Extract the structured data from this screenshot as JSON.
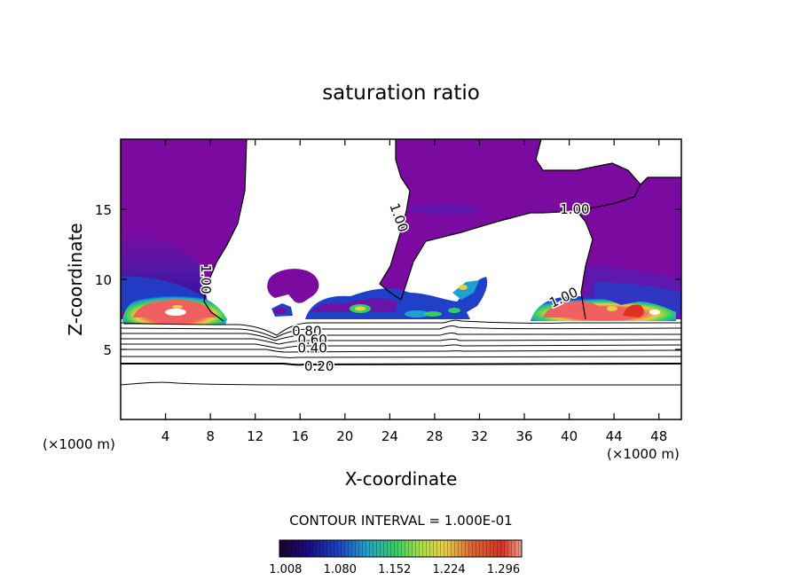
{
  "chart_data": {
    "type": "heatmap",
    "title": "saturation ratio",
    "xlabel": "X-coordinate",
    "ylabel": "Z-coordinate",
    "x_unit_left": "(×1000 m)",
    "x_unit_right": "(×1000 m)",
    "xlim": [
      0,
      50
    ],
    "ylim": [
      0,
      20
    ],
    "x_ticks": [
      4,
      8,
      12,
      16,
      20,
      24,
      28,
      32,
      36,
      40,
      44,
      48
    ],
    "y_ticks": [
      5,
      10,
      15
    ],
    "grid": false,
    "contour_interval_label": "CONTOUR INTERVAL = 1.000E-01",
    "contour_labels": [
      {
        "text": "1.00",
        "x": 40.5,
        "y": 15.0,
        "rot": 0
      },
      {
        "text": "1.00",
        "x": 24.8,
        "y": 14.4,
        "rot": 70
      },
      {
        "text": "1.00",
        "x": 7.6,
        "y": 10.0,
        "rot": 90
      },
      {
        "text": "1.00",
        "x": 39.5,
        "y": 8.7,
        "rot": -25
      },
      {
        "text": "0.80",
        "x": 16.6,
        "y": 6.3,
        "rot": 0
      },
      {
        "text": "0.60",
        "x": 17.1,
        "y": 5.7,
        "rot": 0
      },
      {
        "text": "0.40",
        "x": 17.1,
        "y": 5.1,
        "rot": 0
      },
      {
        "text": "0.20",
        "x": 17.7,
        "y": 3.8,
        "rot": 0
      }
    ],
    "colorbar": {
      "tick_labels": [
        "1.008",
        "1.080",
        "1.152",
        "1.224",
        "1.296"
      ],
      "range": [
        1.0,
        1.32
      ],
      "colors": [
        "#1b0030",
        "#1c0a8a",
        "#1840c8",
        "#20a0d0",
        "#30d060",
        "#a8e040",
        "#e8d040",
        "#e06030",
        "#e03020",
        "#f0a090"
      ]
    },
    "colors": {
      "supersaturated": "#7a0aa0",
      "supersaturated_edge": "#5a1ab0",
      "peak": "#f06060"
    }
  }
}
